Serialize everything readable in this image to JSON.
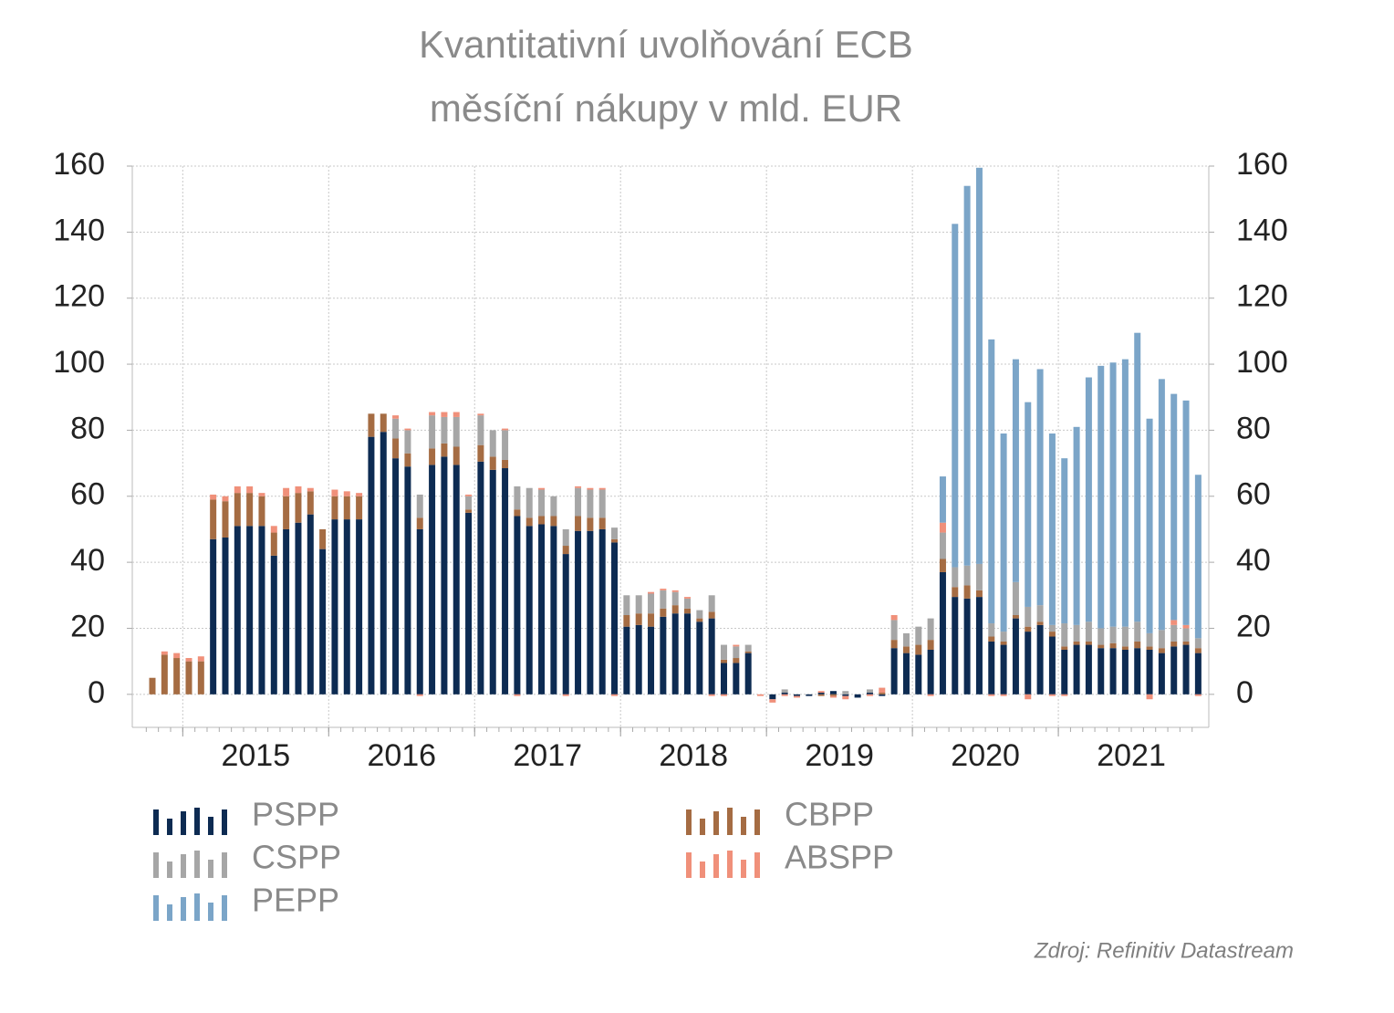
{
  "chart_data": {
    "type": "bar",
    "stacked": true,
    "title": "Kvantitativní uvolňování ECB",
    "subtitle": "měsíční nákupy v mld. EUR",
    "source": "Zdroj: Refinitiv Datastream",
    "categories": [
      null,
      null,
      null,
      null,
      null,
      null,
      null,
      null,
      null,
      "2015",
      null,
      null,
      null,
      null,
      null,
      null,
      null,
      null,
      null,
      null,
      null,
      "2016",
      null,
      null,
      null,
      null,
      null,
      null,
      null,
      null,
      null,
      null,
      null,
      "2017",
      null,
      null,
      null,
      null,
      null,
      null,
      null,
      null,
      null,
      null,
      null,
      "2018",
      null,
      null,
      null,
      null,
      null,
      null,
      null,
      null,
      null,
      null,
      null,
      "2019",
      null,
      null,
      null,
      null,
      null,
      null,
      null,
      null,
      null,
      null,
      null,
      "2020",
      null,
      null,
      null,
      null,
      null,
      null,
      null,
      null,
      null,
      null,
      null,
      "2021",
      null,
      null,
      null,
      null,
      null
    ],
    "series": [
      {
        "name": "PSPP",
        "color": "#0d2b52",
        "values": [
          0,
          0,
          0,
          0,
          0,
          47,
          47.5,
          51,
          51,
          51,
          42,
          50,
          52,
          54.5,
          44,
          53,
          53,
          53,
          78,
          79.5,
          71.5,
          69,
          50,
          69.5,
          72,
          69.5,
          55,
          70.5,
          68,
          68.5,
          54,
          51,
          51.5,
          51,
          42.5,
          49.5,
          49.5,
          50,
          46,
          20.5,
          21,
          20.5,
          23.5,
          24.5,
          24.5,
          22,
          23,
          9.5,
          9.5,
          12.5,
          0,
          -1.5,
          0.5,
          -0.5,
          -0.5,
          0.5,
          1,
          -0.5,
          -1,
          0.5,
          -0.5,
          14,
          12.5,
          12,
          13.5,
          37,
          29.5,
          29,
          29.5,
          16,
          15,
          23,
          19,
          21,
          17.5,
          13.5,
          15,
          15,
          14,
          14,
          13.5,
          14,
          13.5,
          12.5,
          14.5,
          15,
          12.5
        ]
      },
      {
        "name": "CBPP",
        "color": "#a56c43",
        "values": [
          5,
          12,
          11,
          10,
          10,
          12,
          11,
          10,
          10,
          9,
          7,
          10,
          9,
          7,
          6,
          7,
          7,
          7,
          7,
          5.5,
          6,
          4,
          3.5,
          5,
          4,
          5.5,
          1,
          5,
          4,
          2.5,
          2,
          2.5,
          2.5,
          3,
          2.5,
          4.5,
          4,
          3.5,
          1,
          3.5,
          3.5,
          4,
          2.5,
          2.5,
          1.5,
          1,
          2,
          1,
          1.5,
          0.5,
          0,
          0,
          0,
          0,
          0,
          -0.5,
          -0.5,
          0,
          0,
          0,
          0.5,
          2.5,
          2,
          3,
          3,
          4,
          3,
          4,
          2,
          1.5,
          1,
          1,
          1.5,
          1,
          1.5,
          1,
          1,
          1,
          1,
          1.5,
          1,
          2,
          1,
          1.5,
          1.5,
          1,
          1.5
        ]
      },
      {
        "name": "CSPP",
        "color": "#a6a6a6",
        "values": [
          0,
          0,
          0,
          0,
          0,
          0,
          0,
          0,
          0,
          0,
          0,
          0,
          0,
          0,
          0,
          0,
          0,
          0,
          0,
          0,
          6,
          7,
          7,
          10,
          8,
          9,
          4,
          9,
          8,
          9,
          7,
          9,
          8,
          6,
          5,
          8.5,
          8.5,
          8.5,
          3.5,
          6,
          5.5,
          6,
          5.5,
          4,
          3,
          2.5,
          5,
          4.5,
          3.5,
          2,
          0,
          0,
          1,
          0,
          0,
          0,
          0,
          1,
          0,
          1,
          0,
          6,
          4,
          5.5,
          6.5,
          8,
          6,
          6,
          8,
          4,
          3,
          10,
          6,
          5,
          2,
          7,
          5,
          6,
          5,
          5,
          6,
          6,
          4,
          5.5,
          5,
          4,
          3
        ]
      },
      {
        "name": "ABSPP",
        "color": "#f0907a",
        "values": [
          0,
          1,
          1.5,
          1,
          1.5,
          1.5,
          1.5,
          2,
          2,
          1,
          2,
          2.5,
          2,
          1,
          0,
          2,
          1.5,
          1,
          0,
          0,
          1,
          0.5,
          -0.5,
          1,
          1.5,
          1.5,
          0.5,
          0.5,
          0,
          0.5,
          -0.5,
          0,
          0.5,
          0,
          -0.5,
          0.5,
          0.5,
          0.5,
          -0.5,
          0,
          0,
          0.5,
          0.5,
          0.5,
          0.5,
          0,
          -0.5,
          -0.5,
          0.5,
          0,
          -0.5,
          -1,
          -0.5,
          -0.5,
          0,
          0.5,
          -0.5,
          -1,
          0,
          -0.5,
          1.5,
          1.5,
          0,
          0,
          -0.5,
          3,
          0,
          0,
          0,
          -0.5,
          -0.5,
          0,
          -1.5,
          0,
          -0.5,
          -0.5,
          0,
          0,
          0,
          0,
          0,
          0,
          -1.5,
          0,
          1.5,
          1,
          -0.5
        ]
      },
      {
        "name": "PEPP",
        "color": "#7ba5c8",
        "values": [
          0,
          0,
          0,
          0,
          0,
          0,
          0,
          0,
          0,
          0,
          0,
          0,
          0,
          0,
          0,
          0,
          0,
          0,
          0,
          0,
          0,
          0,
          0,
          0,
          0,
          0,
          0,
          0,
          0,
          0,
          0,
          0,
          0,
          0,
          0,
          0,
          0,
          0,
          0,
          0,
          0,
          0,
          0,
          0,
          0,
          0,
          0,
          0,
          0,
          0,
          0,
          0,
          0,
          0,
          0,
          0,
          0,
          0,
          0,
          0,
          0,
          0,
          0,
          0,
          0,
          14,
          104,
          115,
          120,
          86,
          60,
          67.5,
          62,
          71.5,
          58,
          50,
          60,
          74,
          79.5,
          80,
          81,
          87.5,
          65,
          76,
          68.5,
          68,
          49.5
        ]
      }
    ],
    "ylim": [
      -10,
      160
    ],
    "yticks": [
      0,
      20,
      40,
      60,
      80,
      100,
      120,
      140,
      160
    ],
    "y2lim": [
      -10,
      160
    ],
    "y2ticks": [
      0,
      20,
      40,
      60,
      80,
      100,
      120,
      140,
      160
    ],
    "grid": true
  }
}
